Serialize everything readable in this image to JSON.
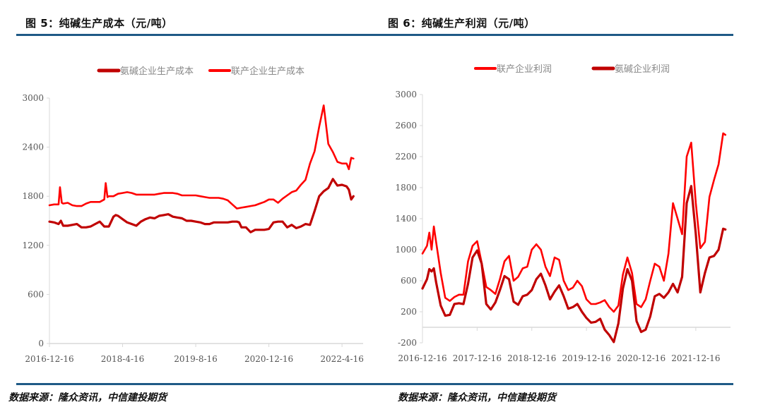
{
  "figures": [
    {
      "title": "图 5：纯碱生产成本（元/吨）",
      "source": "数据来源：隆众资讯，中信建投期货"
    },
    {
      "title": "图 6：纯碱生产利润（元/吨）",
      "source": "数据来源：隆众资讯，中信建投期货"
    }
  ],
  "colors": {
    "rule": "#1f5a86",
    "dark_red": "#c00000",
    "bright_red": "#ff0000",
    "axis": "#d9d9d9"
  },
  "chart_data": [
    {
      "type": "line",
      "title": "纯碱生产成本（元/吨）",
      "xlabel": "",
      "ylabel": "元/吨",
      "ylim": [
        0,
        3000
      ],
      "yticks": [
        0,
        600,
        1200,
        1800,
        2400,
        3000
      ],
      "xticks": [
        "2016-12-16",
        "2018-4-16",
        "2019-8-16",
        "2020-12-16",
        "2022-4-16"
      ],
      "grid": false,
      "legend_position": "top",
      "x_domain": [
        0,
        68
      ],
      "xtick_positions": [
        0,
        16,
        32,
        48,
        64
      ],
      "series": [
        {
          "name": "氨碱企业生产成本",
          "color": "#c00000",
          "x": [
            0,
            1,
            2,
            2.5,
            3,
            4,
            5,
            6,
            7,
            8,
            9,
            10,
            11,
            12,
            13,
            14,
            14.5,
            15,
            16,
            17,
            18,
            19,
            20,
            21,
            22,
            23,
            24,
            25,
            26,
            27,
            28,
            29,
            30,
            31,
            32,
            33,
            34,
            35,
            36,
            37,
            38,
            39,
            40,
            41,
            41.5,
            42,
            43,
            44,
            45,
            46,
            47,
            48,
            49,
            50,
            51,
            52,
            53,
            54,
            55,
            56,
            57,
            58,
            59,
            60,
            61,
            62,
            63,
            64,
            65,
            65.5,
            66,
            66.5
          ],
          "values": [
            1490,
            1480,
            1460,
            1500,
            1440,
            1440,
            1450,
            1460,
            1420,
            1420,
            1430,
            1460,
            1490,
            1430,
            1430,
            1550,
            1570,
            1560,
            1520,
            1480,
            1460,
            1440,
            1490,
            1520,
            1540,
            1530,
            1560,
            1570,
            1580,
            1550,
            1540,
            1530,
            1500,
            1500,
            1490,
            1480,
            1460,
            1460,
            1480,
            1480,
            1480,
            1480,
            1490,
            1490,
            1480,
            1420,
            1420,
            1360,
            1390,
            1390,
            1390,
            1400,
            1480,
            1490,
            1490,
            1420,
            1450,
            1410,
            1430,
            1460,
            1450,
            1620,
            1800,
            1860,
            1900,
            2010,
            1930,
            1940,
            1920,
            1880,
            1760,
            1800
          ]
        },
        {
          "name": "联产企业生产成本",
          "color": "#ff0000",
          "x": [
            0,
            1,
            2,
            2.3,
            2.7,
            3,
            4,
            5,
            6,
            7,
            8,
            9,
            10,
            11,
            12,
            12.3,
            12.7,
            13,
            14,
            15,
            16,
            17,
            18,
            19,
            20,
            21,
            22,
            23,
            24,
            25,
            26,
            27,
            28,
            29,
            30,
            31,
            32,
            33,
            34,
            35,
            36,
            37,
            38,
            39,
            40,
            41,
            42,
            43,
            44,
            45,
            46,
            47,
            48,
            49,
            50,
            51,
            52,
            53,
            54,
            55,
            56,
            57,
            58,
            59,
            60,
            61,
            62,
            63,
            64,
            65,
            65.5,
            66,
            66.5
          ],
          "values": [
            1690,
            1700,
            1700,
            1910,
            1720,
            1710,
            1720,
            1690,
            1680,
            1680,
            1710,
            1730,
            1730,
            1730,
            1760,
            1960,
            1790,
            1800,
            1800,
            1830,
            1840,
            1850,
            1840,
            1820,
            1820,
            1820,
            1820,
            1820,
            1830,
            1840,
            1840,
            1840,
            1830,
            1810,
            1810,
            1810,
            1810,
            1800,
            1790,
            1780,
            1780,
            1780,
            1770,
            1750,
            1700,
            1650,
            1660,
            1670,
            1680,
            1690,
            1710,
            1730,
            1760,
            1760,
            1720,
            1770,
            1810,
            1850,
            1870,
            1940,
            2000,
            2200,
            2350,
            2650,
            2910,
            2440,
            2340,
            2220,
            2200,
            2200,
            2130,
            2270,
            2260
          ]
        }
      ]
    },
    {
      "type": "line",
      "title": "纯碱生产利润（元/吨）",
      "xlabel": "",
      "ylabel": "元/吨",
      "ylim": [
        -200,
        3000
      ],
      "yticks": [
        -200,
        200,
        600,
        1000,
        1400,
        1800,
        2200,
        2600,
        3000
      ],
      "xticks": [
        "2016-12-16",
        "2017-12-16",
        "2018-12-16",
        "2019-12-16",
        "2020-12-16",
        "2021-12-16"
      ],
      "grid": false,
      "legend_position": "top",
      "x_domain": [
        0,
        67
      ],
      "xtick_positions": [
        0,
        12,
        24,
        36,
        48,
        60
      ],
      "series": [
        {
          "name": "联产企业利润",
          "color": "#ff0000",
          "x": [
            0,
            1,
            1.5,
            2,
            2.5,
            3,
            4,
            5,
            6,
            7,
            8,
            9,
            10,
            11,
            12,
            13,
            14,
            15,
            16,
            17,
            18,
            19,
            20,
            21,
            22,
            23,
            24,
            25,
            26,
            27,
            28,
            29,
            30,
            31,
            32,
            33,
            34,
            35,
            36,
            37,
            38,
            39,
            40,
            41,
            42,
            43,
            44,
            45,
            46,
            47,
            48,
            49,
            50,
            51,
            52,
            53,
            54,
            55,
            56,
            57,
            58,
            59,
            60,
            61,
            62,
            63,
            64,
            65,
            66,
            66.5
          ],
          "values": [
            950,
            1050,
            1220,
            1000,
            1300,
            1100,
            700,
            380,
            340,
            390,
            420,
            420,
            850,
            1050,
            1110,
            830,
            520,
            480,
            430,
            620,
            850,
            920,
            600,
            650,
            760,
            780,
            1000,
            1070,
            1000,
            780,
            660,
            900,
            870,
            600,
            480,
            510,
            600,
            530,
            360,
            300,
            300,
            320,
            350,
            260,
            200,
            280,
            680,
            900,
            700,
            300,
            260,
            360,
            600,
            820,
            780,
            600,
            950,
            1600,
            1400,
            1200,
            2200,
            2380,
            1600,
            1020,
            1100,
            1680,
            1900,
            2100,
            2500,
            2480
          ]
        },
        {
          "name": "氨碱企业利润",
          "color": "#c00000",
          "x": [
            0,
            1,
            1.5,
            2,
            2.5,
            3,
            4,
            5,
            6,
            7,
            8,
            9,
            10,
            11,
            12,
            13,
            14,
            15,
            16,
            17,
            18,
            19,
            20,
            21,
            22,
            23,
            24,
            25,
            26,
            27,
            28,
            29,
            30,
            31,
            32,
            33,
            34,
            35,
            36,
            37,
            38,
            39,
            40,
            41,
            42,
            43,
            44,
            45,
            46,
            47,
            48,
            49,
            50,
            51,
            52,
            53,
            54,
            55,
            56,
            57,
            58,
            59,
            60,
            61,
            62,
            63,
            64,
            65,
            66,
            66.5
          ],
          "values": [
            500,
            620,
            750,
            720,
            760,
            580,
            280,
            150,
            160,
            300,
            310,
            300,
            560,
            900,
            990,
            820,
            300,
            230,
            320,
            480,
            660,
            620,
            330,
            290,
            400,
            420,
            480,
            620,
            690,
            540,
            360,
            460,
            540,
            400,
            240,
            260,
            300,
            200,
            120,
            60,
            70,
            110,
            -30,
            -100,
            -190,
            50,
            500,
            750,
            600,
            80,
            -60,
            -30,
            140,
            400,
            430,
            380,
            450,
            560,
            450,
            650,
            1600,
            1820,
            1200,
            450,
            700,
            900,
            920,
            1000,
            1270,
            1260
          ]
        }
      ]
    }
  ]
}
